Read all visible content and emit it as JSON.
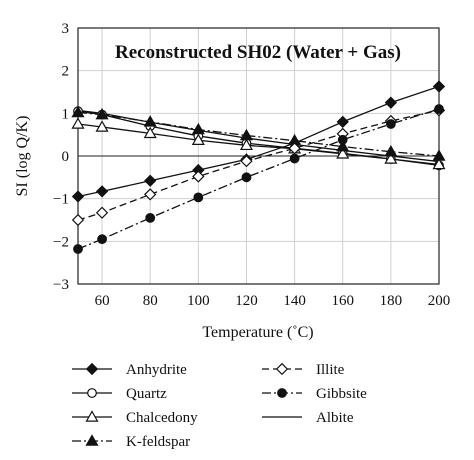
{
  "chart_data": {
    "type": "line",
    "title": "Reconstructed SH02 (Water + Gas)",
    "xlabel": "Temperature (˚C)",
    "ylabel": "SI (log Q/K)",
    "xlim": [
      50,
      200
    ],
    "ylim": [
      -3,
      3
    ],
    "x": [
      50,
      60,
      80,
      100,
      120,
      140,
      160,
      180,
      200
    ],
    "x_ticks": [
      60,
      80,
      100,
      120,
      140,
      160,
      180,
      200
    ],
    "y_ticks": [
      -3,
      -2,
      -1,
      0,
      1,
      2,
      3
    ],
    "tick_labels_x": [
      "60",
      "80",
      "100",
      "120",
      "140",
      "160",
      "180",
      "200"
    ],
    "tick_labels_y": [
      "−3",
      "−2",
      "−1",
      "0",
      "1",
      "2",
      "3"
    ],
    "grid": true,
    "legend_position": "bottom",
    "series": [
      {
        "name": "Anhydrite",
        "marker": "diamond-filled",
        "dash": "solid",
        "values": [
          -0.95,
          -0.83,
          -0.58,
          -0.33,
          -0.08,
          0.3,
          0.8,
          1.25,
          1.63
        ]
      },
      {
        "name": "Quartz",
        "marker": "circle-open",
        "dash": "solid",
        "values": [
          1.05,
          0.97,
          0.7,
          0.47,
          0.3,
          0.18,
          0.06,
          -0.07,
          -0.22
        ]
      },
      {
        "name": "Chalcedony",
        "marker": "triangle-open",
        "dash": "solid",
        "values": [
          0.75,
          0.68,
          0.53,
          0.37,
          0.25,
          0.17,
          0.05,
          -0.07,
          -0.2
        ]
      },
      {
        "name": "K-feldspar",
        "marker": "triangle-filled",
        "dash": "dashdot",
        "values": [
          1.02,
          0.97,
          0.8,
          0.62,
          0.48,
          0.36,
          0.22,
          0.1,
          0.0
        ]
      },
      {
        "name": "Illite",
        "marker": "diamond-open",
        "dash": "dashed",
        "values": [
          -1.5,
          -1.33,
          -0.9,
          -0.48,
          -0.12,
          0.18,
          0.52,
          0.82,
          1.07
        ]
      },
      {
        "name": "Gibbsite",
        "marker": "circle-filled",
        "dash": "dashdot",
        "values": [
          -2.18,
          -1.95,
          -1.45,
          -0.97,
          -0.5,
          -0.06,
          0.38,
          0.75,
          1.1
        ]
      },
      {
        "name": "Albite",
        "marker": "none",
        "dash": "solid",
        "values": [
          1.07,
          1.0,
          0.79,
          0.6,
          0.42,
          0.27,
          0.13,
          0.0,
          -0.13
        ]
      }
    ]
  }
}
